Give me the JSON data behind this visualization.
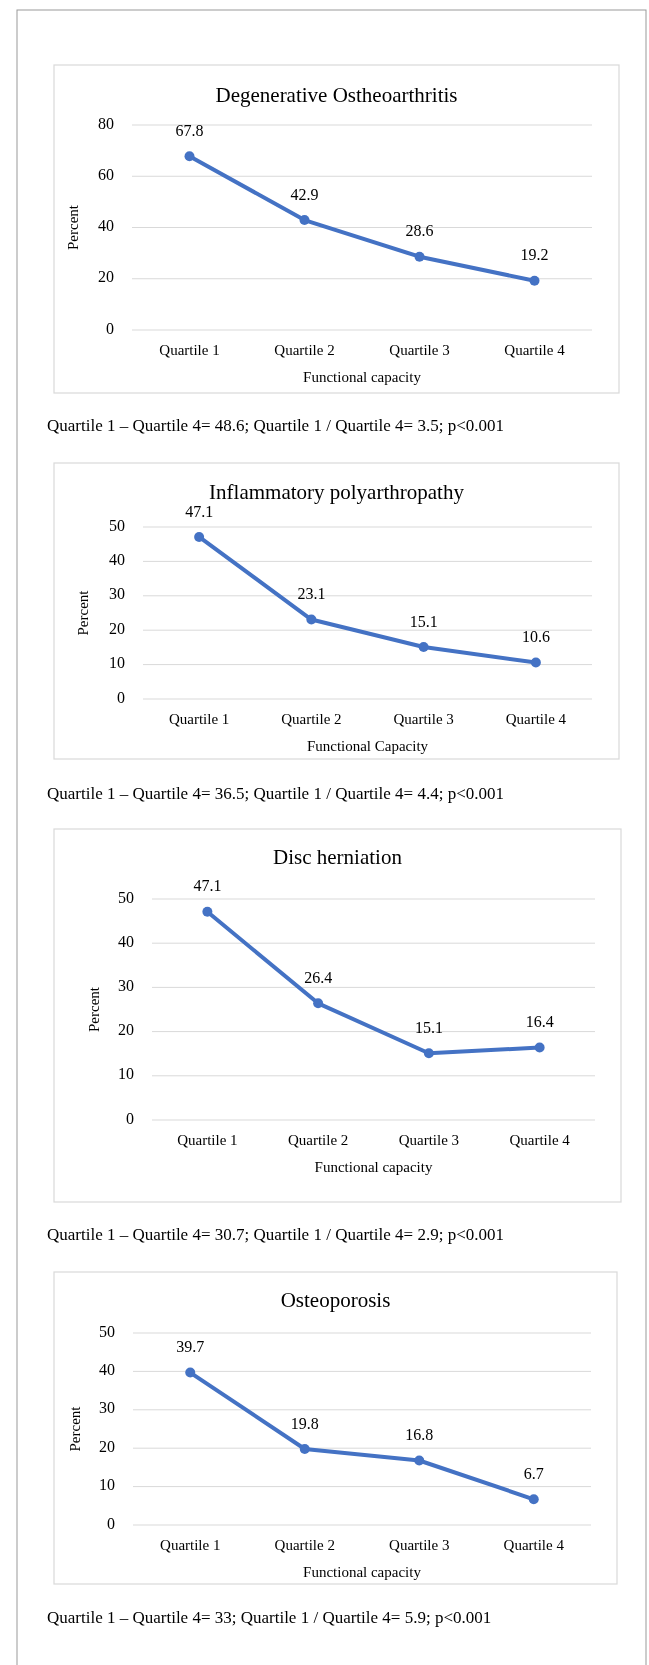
{
  "chart_data": [
    {
      "type": "line",
      "title": "Degenerative Ostheoarthritis",
      "xlabel": "Functional capacity",
      "ylabel": "Percent",
      "categories": [
        "Quartile 1",
        "Quartile 2",
        "Quartile 3",
        "Quartile 4"
      ],
      "series": [
        {
          "color": "#4472c4",
          "values": [
            67.8,
            42.9,
            28.6,
            19.2
          ]
        }
      ],
      "ylim": [
        0,
        80
      ],
      "yticks": [
        0,
        20,
        40,
        60,
        80
      ],
      "grid": "y",
      "marker": "circle",
      "line_style": "solid",
      "data_labels": true,
      "annotations": [
        "Quartile 1 – Quartile 4= 48.6; Quartile 1 / Quartile 4= 3.5; p<0.001"
      ]
    },
    {
      "type": "line",
      "title": "Inflammatory polyarthropathy",
      "xlabel": "Functional Capacity",
      "ylabel": "Percent",
      "categories": [
        "Quartile 1",
        "Quartile 2",
        "Quartile 3",
        "Quartile 4"
      ],
      "series": [
        {
          "color": "#4472c4",
          "values": [
            47.1,
            23.1,
            15.1,
            10.6
          ]
        }
      ],
      "ylim": [
        0,
        50
      ],
      "yticks": [
        0,
        10,
        20,
        30,
        40,
        50
      ],
      "grid": "y",
      "marker": "circle",
      "line_style": "solid",
      "data_labels": true,
      "annotations": [
        "Quartile 1 – Quartile 4= 36.5; Quartile 1 / Quartile 4= 4.4; p<0.001"
      ]
    },
    {
      "type": "line",
      "title": "Disc herniation",
      "xlabel": "Functional capacity",
      "ylabel": "Percent",
      "categories": [
        "Quartile 1",
        "Quartile 2",
        "Quartile 3",
        "Quartile 4"
      ],
      "series": [
        {
          "color": "#4472c4",
          "values": [
            47.1,
            26.4,
            15.1,
            16.4
          ]
        }
      ],
      "ylim": [
        0,
        50
      ],
      "yticks": [
        0,
        10,
        20,
        30,
        40,
        50
      ],
      "grid": "y",
      "marker": "circle",
      "line_style": "solid",
      "data_labels": true,
      "annotations": [
        "Quartile 1 – Quartile 4= 30.7; Quartile 1 / Quartile 4= 2.9; p<0.001"
      ]
    },
    {
      "type": "line",
      "title": "Osteoporosis",
      "xlabel": "Functional capacity",
      "ylabel": "Percent",
      "categories": [
        "Quartile 1",
        "Quartile 2",
        "Quartile 3",
        "Quartile 4"
      ],
      "series": [
        {
          "color": "#4472c4",
          "values": [
            39.7,
            19.8,
            16.8,
            6.7
          ]
        }
      ],
      "ylim": [
        0,
        50
      ],
      "yticks": [
        0,
        10,
        20,
        30,
        40,
        50
      ],
      "grid": "y",
      "marker": "circle",
      "line_style": "solid",
      "data_labels": true,
      "annotations": [
        "Quartile 1 – Quartile 4= 33; Quartile 1 / Quartile 4= 5.9; p<0.001"
      ]
    }
  ]
}
